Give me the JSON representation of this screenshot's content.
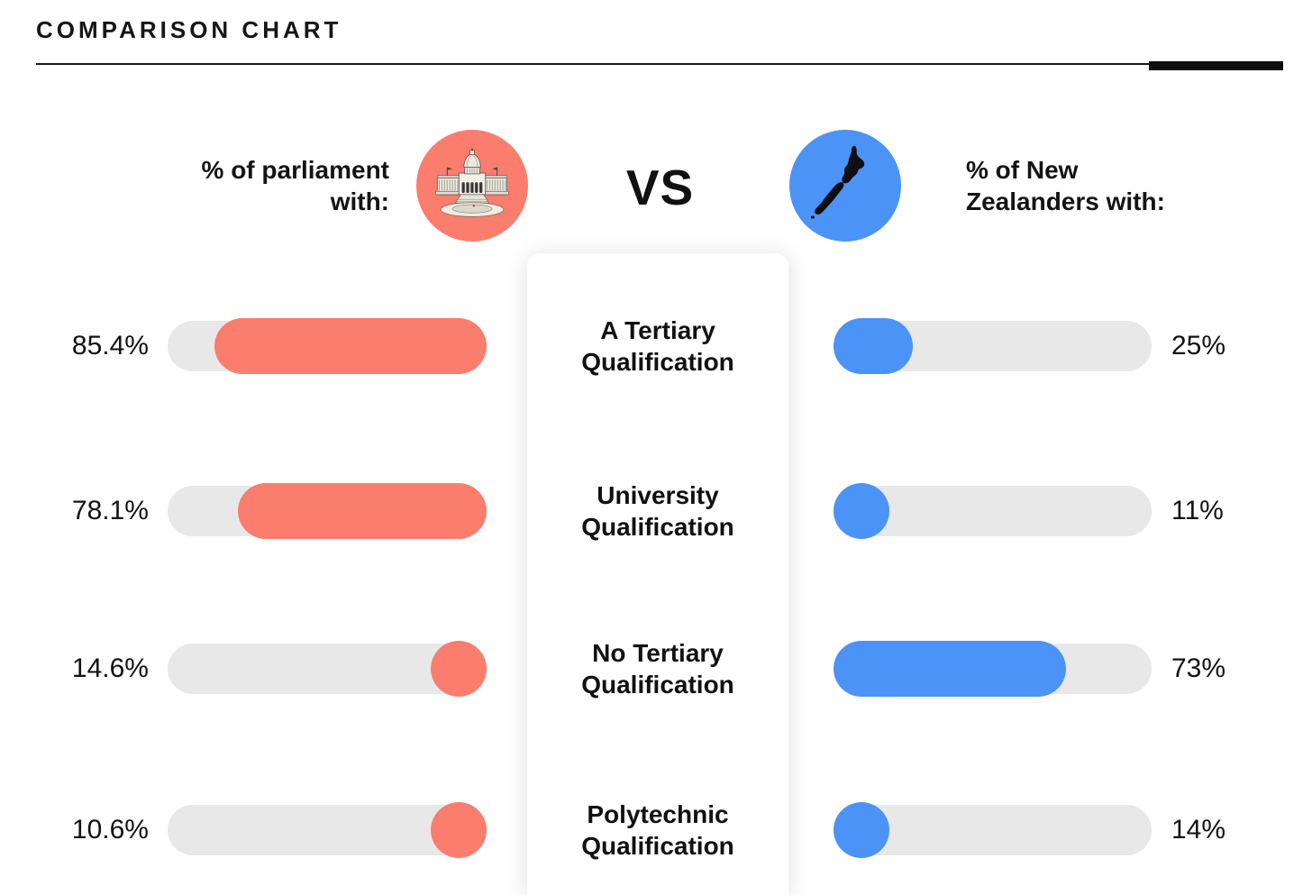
{
  "page": {
    "title": "COMPARISON CHART"
  },
  "header": {
    "left": {
      "lines": [
        "% of parliament",
        "with:"
      ],
      "icon": "parliament-building-icon"
    },
    "vs": "VS",
    "right": {
      "lines": [
        "% of New",
        "Zealanders with:"
      ],
      "icon": "new-zealand-map-icon"
    }
  },
  "colors": {
    "parliament": "#FB7D6D",
    "new_zealanders": "#4B93F6",
    "track": "#E8E8E8",
    "text": "#141414",
    "accent_bar": "#0D0D0D"
  },
  "chart_data": {
    "type": "bar",
    "orientation": "horizontal",
    "title": "COMPARISON CHART",
    "categories": [
      "A Tertiary Qualification",
      "University Qualification",
      "No Tertiary Qualification",
      "Polytechnic Qualification"
    ],
    "category_lines": [
      [
        "A Tertiary",
        "Qualification"
      ],
      [
        "University",
        "Qualification"
      ],
      [
        "No Tertiary",
        "Qualification"
      ],
      [
        "Polytechnic",
        "Qualification"
      ]
    ],
    "series": [
      {
        "name": "% of parliament with",
        "side": "left",
        "color": "#FB7D6D",
        "anchor": "right",
        "values": [
          85.4,
          78.1,
          14.6,
          10.6
        ],
        "labels": [
          "85.4%",
          "78.1%",
          "14.6%",
          "10.6%"
        ]
      },
      {
        "name": "% of New Zealanders with",
        "side": "right",
        "color": "#4B93F6",
        "anchor": "left",
        "values": [
          25,
          11,
          73,
          14
        ],
        "labels": [
          "25%",
          "11%",
          "73%",
          "14%"
        ]
      }
    ],
    "value_range": [
      0,
      100
    ],
    "track_color": "#E8E8E8",
    "legend_position": "top"
  }
}
